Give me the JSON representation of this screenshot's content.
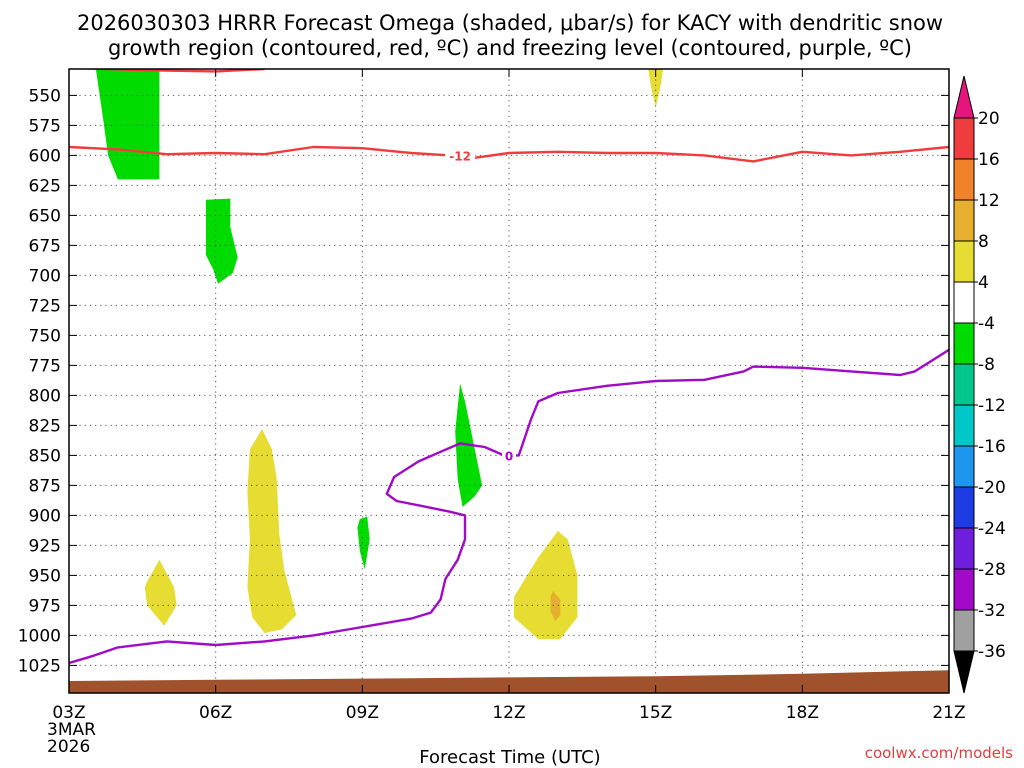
{
  "chart_data": {
    "type": "contour-timeheight",
    "title": "2026030303 HRRR Forecast Omega (shaded, μbar/s) for KACY with dendritic snow",
    "subtitle": "growth region (contoured, red, ºC) and freezing level (contoured, purple, ºC)",
    "xlabel": "Forecast Time (UTC)",
    "x_range_hours": [
      3,
      21
    ],
    "x_ticks": [
      {
        "hour": 3,
        "label": "03Z"
      },
      {
        "hour": 6,
        "label": "06Z"
      },
      {
        "hour": 9,
        "label": "09Z"
      },
      {
        "hour": 12,
        "label": "12Z"
      },
      {
        "hour": 15,
        "label": "15Z"
      },
      {
        "hour": 18,
        "label": "18Z"
      },
      {
        "hour": 21,
        "label": "21Z"
      }
    ],
    "x_date_lines": [
      "3MAR",
      "2026"
    ],
    "y_range_mb": [
      528,
      1048
    ],
    "y_ticks": [
      550,
      575,
      600,
      625,
      650,
      675,
      700,
      725,
      750,
      775,
      800,
      825,
      850,
      875,
      900,
      925,
      950,
      975,
      1000,
      1025
    ],
    "colorbar": {
      "labels": [
        "20",
        "16",
        "12",
        "8",
        "4",
        "-4",
        "-8",
        "-12",
        "-16",
        "-20",
        "-24",
        "-28",
        "-32",
        "-36"
      ],
      "bins": [
        {
          "lo": 16,
          "hi": 20,
          "color": "#f03c3c"
        },
        {
          "lo": 12,
          "hi": 16,
          "color": "#f0822a"
        },
        {
          "lo": 8,
          "hi": 12,
          "color": "#e6af2d"
        },
        {
          "lo": 4,
          "hi": 8,
          "color": "#e6dc32"
        },
        {
          "lo": -4,
          "hi": 4,
          "color": "#ffffff"
        },
        {
          "lo": -8,
          "hi": -4,
          "color": "#00dc00"
        },
        {
          "lo": -12,
          "hi": -8,
          "color": "#00c88c"
        },
        {
          "lo": -16,
          "hi": -12,
          "color": "#00c8c8"
        },
        {
          "lo": -20,
          "hi": -16,
          "color": "#1e96f0"
        },
        {
          "lo": -24,
          "hi": -20,
          "color": "#1e3ce6"
        },
        {
          "lo": -28,
          "hi": -24,
          "color": "#6e1edc"
        },
        {
          "lo": -32,
          "hi": -28,
          "color": "#a00ac8"
        },
        {
          "lo": -36,
          "hi": -32,
          "color": "#a0a0a0"
        }
      ],
      "over_color": "#e6147d",
      "under_color": "#000000"
    },
    "omega_regions": [
      {
        "name": "upward-motion-upper-early",
        "color": "#00dc00",
        "points": [
          [
            3.55,
            528
          ],
          [
            4.85,
            528
          ],
          [
            4.85,
            620
          ],
          [
            4.4,
            620
          ],
          [
            4.0,
            620
          ],
          [
            3.8,
            600
          ],
          [
            3.7,
            570
          ]
        ]
      },
      {
        "name": "upward-motion-mid-0630",
        "color": "#00dc00",
        "points": [
          [
            5.8,
            637
          ],
          [
            6.3,
            636
          ],
          [
            6.3,
            660
          ],
          [
            6.45,
            685
          ],
          [
            6.35,
            698
          ],
          [
            6.05,
            707
          ],
          [
            5.95,
            695
          ],
          [
            5.8,
            683
          ]
        ]
      },
      {
        "name": "upward-motion-0910",
        "color": "#00dc00",
        "points": [
          [
            8.95,
            903
          ],
          [
            9.1,
            901
          ],
          [
            9.15,
            920
          ],
          [
            9.05,
            945
          ],
          [
            8.95,
            930
          ],
          [
            8.9,
            910
          ]
        ]
      },
      {
        "name": "upward-motion-1100",
        "color": "#00dc00",
        "points": [
          [
            11.0,
            790
          ],
          [
            11.1,
            805
          ],
          [
            11.3,
            845
          ],
          [
            11.45,
            875
          ],
          [
            11.3,
            884
          ],
          [
            11.05,
            893
          ],
          [
            10.95,
            870
          ],
          [
            10.9,
            830
          ]
        ]
      },
      {
        "name": "sinking-motion-upper-1500",
        "color": "#e6dc32",
        "points": [
          [
            14.85,
            528
          ],
          [
            15.15,
            528
          ],
          [
            15.1,
            542
          ],
          [
            15.0,
            560
          ],
          [
            14.9,
            542
          ]
        ]
      },
      {
        "name": "sinking-motion-0500",
        "color": "#e6dc32",
        "points": [
          [
            4.6,
            955
          ],
          [
            4.85,
            937
          ],
          [
            5.15,
            960
          ],
          [
            5.2,
            975
          ],
          [
            4.95,
            992
          ],
          [
            4.6,
            975
          ],
          [
            4.55,
            960
          ]
        ]
      },
      {
        "name": "sinking-motion-0700",
        "color": "#e6dc32",
        "points": [
          [
            6.7,
            845
          ],
          [
            6.95,
            828
          ],
          [
            7.15,
            845
          ],
          [
            7.25,
            870
          ],
          [
            7.3,
            915
          ],
          [
            7.4,
            945
          ],
          [
            7.55,
            968
          ],
          [
            7.65,
            983
          ],
          [
            7.35,
            995
          ],
          [
            7.0,
            998
          ],
          [
            6.75,
            985
          ],
          [
            6.65,
            960
          ],
          [
            6.7,
            920
          ],
          [
            6.65,
            880
          ]
        ]
      },
      {
        "name": "sinking-motion-1300",
        "color": "#e6dc32",
        "points": [
          [
            12.1,
            968
          ],
          [
            12.6,
            935
          ],
          [
            13.0,
            913
          ],
          [
            13.2,
            920
          ],
          [
            13.4,
            950
          ],
          [
            13.4,
            985
          ],
          [
            13.05,
            1003
          ],
          [
            12.6,
            1003
          ],
          [
            12.1,
            985
          ]
        ]
      },
      {
        "name": "sinking-motion-core-1300",
        "color": "#e6af2d",
        "points": [
          [
            12.9,
            963
          ],
          [
            13.05,
            970
          ],
          [
            13.05,
            983
          ],
          [
            12.95,
            988
          ],
          [
            12.85,
            980
          ],
          [
            12.85,
            968
          ]
        ]
      }
    ],
    "isotherms": [
      {
        "name": "dendritic-growth-minus12",
        "value": "-12",
        "color": "#f03c3c",
        "label_at": [
          11.0,
          600
        ],
        "points": [
          [
            3.0,
            593
          ],
          [
            4.0,
            595
          ],
          [
            5.0,
            599
          ],
          [
            6.0,
            598
          ],
          [
            7.0,
            599
          ],
          [
            8.0,
            593
          ],
          [
            9.0,
            594
          ],
          [
            10.0,
            598
          ],
          [
            10.8,
            600
          ],
          [
            11.3,
            602
          ],
          [
            12.0,
            598
          ],
          [
            13.0,
            597
          ],
          [
            14.0,
            598
          ],
          [
            15.0,
            598
          ],
          [
            16.0,
            600
          ],
          [
            17.0,
            605
          ],
          [
            18.0,
            597
          ],
          [
            19.0,
            600
          ],
          [
            20.0,
            597
          ],
          [
            21.0,
            593
          ]
        ]
      },
      {
        "name": "dendritic-growth-upper",
        "value": "",
        "color": "#f03c3c",
        "points": [
          [
            3.0,
            527
          ],
          [
            4.5,
            529
          ],
          [
            6.0,
            530
          ],
          [
            6.5,
            529
          ],
          [
            7.0,
            528
          ]
        ]
      },
      {
        "name": "freezing-level-zero",
        "value": "0",
        "color": "#a00ac8",
        "label_at": [
          12.0,
          850
        ],
        "points": [
          [
            3.0,
            1023
          ],
          [
            3.5,
            1017
          ],
          [
            4.0,
            1010
          ],
          [
            5.0,
            1005
          ],
          [
            6.0,
            1008
          ],
          [
            7.0,
            1005
          ],
          [
            8.0,
            1000
          ],
          [
            9.0,
            993
          ],
          [
            10.0,
            986
          ],
          [
            10.4,
            981
          ],
          [
            10.6,
            970
          ],
          [
            10.7,
            953
          ],
          [
            10.95,
            937
          ],
          [
            11.1,
            920
          ],
          [
            11.1,
            900
          ],
          [
            10.8,
            897
          ],
          [
            10.2,
            892
          ],
          [
            9.7,
            888
          ],
          [
            9.5,
            882
          ],
          [
            9.65,
            868
          ],
          [
            10.15,
            855
          ],
          [
            10.6,
            847
          ],
          [
            11.0,
            840
          ],
          [
            11.5,
            843
          ],
          [
            11.9,
            850
          ],
          [
            12.2,
            850
          ],
          [
            12.45,
            820
          ],
          [
            12.6,
            805
          ],
          [
            13.0,
            798
          ],
          [
            14.0,
            792
          ],
          [
            15.0,
            788
          ],
          [
            16.0,
            787
          ],
          [
            16.8,
            780
          ],
          [
            17.0,
            776
          ],
          [
            18.0,
            777
          ],
          [
            19.0,
            780
          ],
          [
            20.0,
            783
          ],
          [
            20.3,
            780
          ],
          [
            21.0,
            762
          ]
        ]
      }
    ],
    "terrain_color": "#a0522d",
    "terrain_top_mb": [
      [
        3.0,
        1038
      ],
      [
        6.0,
        1037
      ],
      [
        9.0,
        1036
      ],
      [
        12.0,
        1035
      ],
      [
        15.0,
        1034
      ],
      [
        18.0,
        1032
      ],
      [
        21.0,
        1029
      ]
    ]
  },
  "credit": "coolwx.com/models"
}
